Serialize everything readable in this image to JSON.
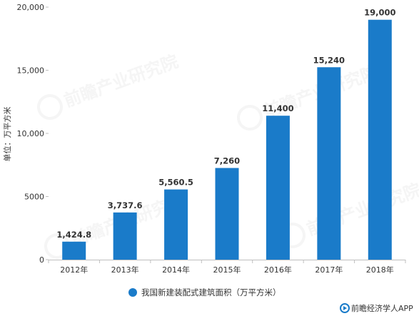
{
  "chart_data": {
    "type": "bar",
    "categories": [
      "2012年",
      "2013年",
      "2014年",
      "2015年",
      "2016年",
      "2017年",
      "2018年"
    ],
    "values": [
      1424.8,
      3737.6,
      5560.5,
      7260,
      11400,
      15240,
      19000
    ],
    "data_labels": [
      "1,424.8",
      "3,737.6",
      "5,560.5",
      "7,260",
      "11,400",
      "15,240",
      "19,000"
    ],
    "ylim": [
      0,
      20000
    ],
    "y_ticks": [
      0,
      5000,
      10000,
      15000,
      20000
    ],
    "y_tick_labels": [
      "0",
      "5000",
      "10,000",
      "15,000",
      "20,000"
    ],
    "ylabel": "单位：万平方米",
    "xlabel": "",
    "grid": false,
    "series": [
      {
        "name": "我国新建装配式建筑面积（万平方米）",
        "values": [
          1424.8,
          3737.6,
          5560.5,
          7260,
          11400,
          15240,
          19000
        ]
      }
    ],
    "legend_position": "bottom-center",
    "bar_color": "#1a7bc9"
  },
  "source": {
    "text": "前瞻经济学人APP",
    "icon": "qianzhan-logo-icon"
  },
  "watermark": {
    "text": "前瞻产业研究院"
  }
}
